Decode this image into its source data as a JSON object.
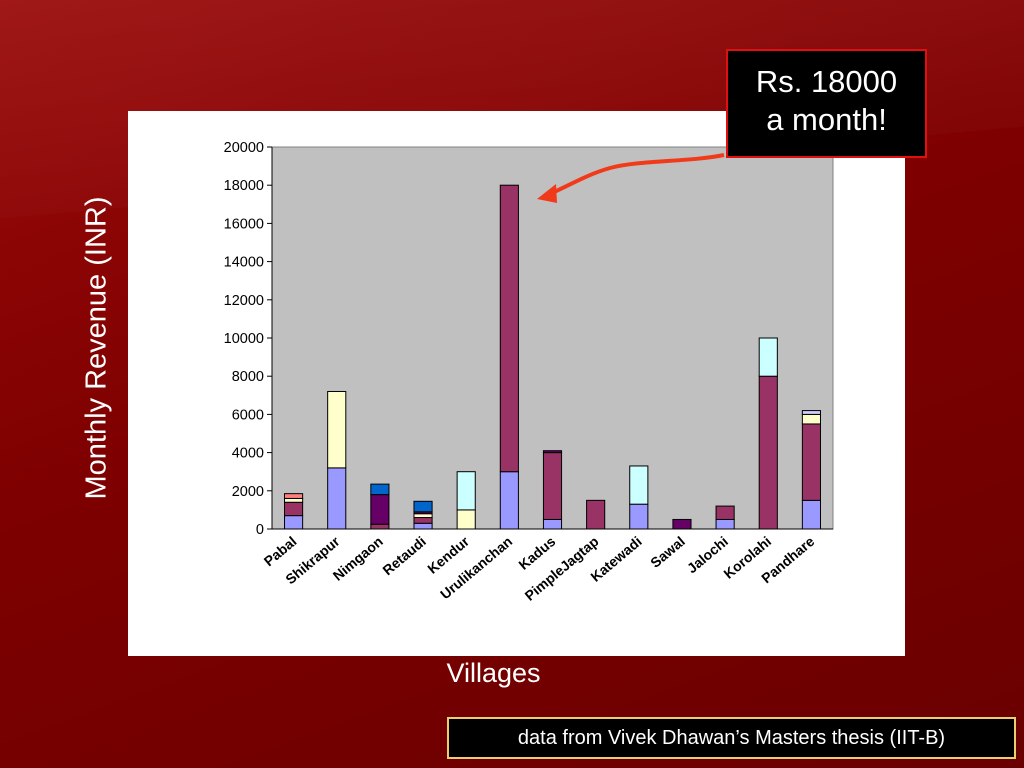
{
  "slide": {
    "callout_line1": "Rs. 18000",
    "callout_line2": "a month!",
    "source_note": "data from Vivek Dhawan’s Masters thesis (IIT-B)"
  },
  "colors": {
    "background": "#7e0000",
    "plot_area": "#c0c0c0",
    "arrow": "#f03a1a",
    "segments": {
      "lavender": "#9999ff",
      "plum": "#993366",
      "light_yellow": "#ffffcc",
      "light_cyan": "#ccffff",
      "purple": "#660066",
      "salmon": "#ff8080",
      "blue": "#0066cc",
      "light_blue": "#ccccff"
    }
  },
  "chart_data": {
    "type": "bar",
    "stacked": true,
    "title": "",
    "xlabel": "Villages",
    "ylabel": "Monthly Revenue (INR)",
    "ylim": [
      0,
      20000
    ],
    "yticks": [
      0,
      2000,
      4000,
      6000,
      8000,
      10000,
      12000,
      14000,
      16000,
      18000,
      20000
    ],
    "grid": false,
    "legend": "none",
    "categories": [
      "Pabal",
      "Shikrapur",
      "Nimgaon",
      "Retaudi",
      "Kendur",
      "Urulikanchan",
      "Kadus",
      "PimpleJagtap",
      "Katewadi",
      "Sawal",
      "Jalochi",
      "Korolahi",
      "Pandhare"
    ],
    "stacks": [
      [
        {
          "color": "lavender",
          "value": 700
        },
        {
          "color": "plum",
          "value": 700
        },
        {
          "color": "light_yellow",
          "value": 200
        },
        {
          "color": "salmon",
          "value": 250
        }
      ],
      [
        {
          "color": "lavender",
          "value": 3200
        },
        {
          "color": "light_yellow",
          "value": 4000
        }
      ],
      [
        {
          "color": "plum",
          "value": 250
        },
        {
          "color": "purple",
          "value": 1550
        },
        {
          "color": "blue",
          "value": 550
        }
      ],
      [
        {
          "color": "lavender",
          "value": 300
        },
        {
          "color": "plum",
          "value": 300
        },
        {
          "color": "light_yellow",
          "value": 200
        },
        {
          "color": "purple",
          "value": 100
        },
        {
          "color": "blue",
          "value": 550
        }
      ],
      [
        {
          "color": "light_yellow",
          "value": 1000
        },
        {
          "color": "light_cyan",
          "value": 2000
        }
      ],
      [
        {
          "color": "lavender",
          "value": 3000
        },
        {
          "color": "plum",
          "value": 15000
        }
      ],
      [
        {
          "color": "lavender",
          "value": 500
        },
        {
          "color": "plum",
          "value": 3500
        },
        {
          "color": "purple",
          "value": 100
        }
      ],
      [
        {
          "color": "plum",
          "value": 1500
        }
      ],
      [
        {
          "color": "lavender",
          "value": 1300
        },
        {
          "color": "light_cyan",
          "value": 2000
        }
      ],
      [
        {
          "color": "purple",
          "value": 500
        }
      ],
      [
        {
          "color": "lavender",
          "value": 500
        },
        {
          "color": "plum",
          "value": 700
        }
      ],
      [
        {
          "color": "plum",
          "value": 8000
        },
        {
          "color": "light_cyan",
          "value": 2000
        }
      ],
      [
        {
          "color": "lavender",
          "value": 1500
        },
        {
          "color": "plum",
          "value": 4000
        },
        {
          "color": "light_yellow",
          "value": 500
        },
        {
          "color": "light_blue",
          "value": 200
        }
      ]
    ],
    "annotation": "Rs. 18000 a month!"
  }
}
